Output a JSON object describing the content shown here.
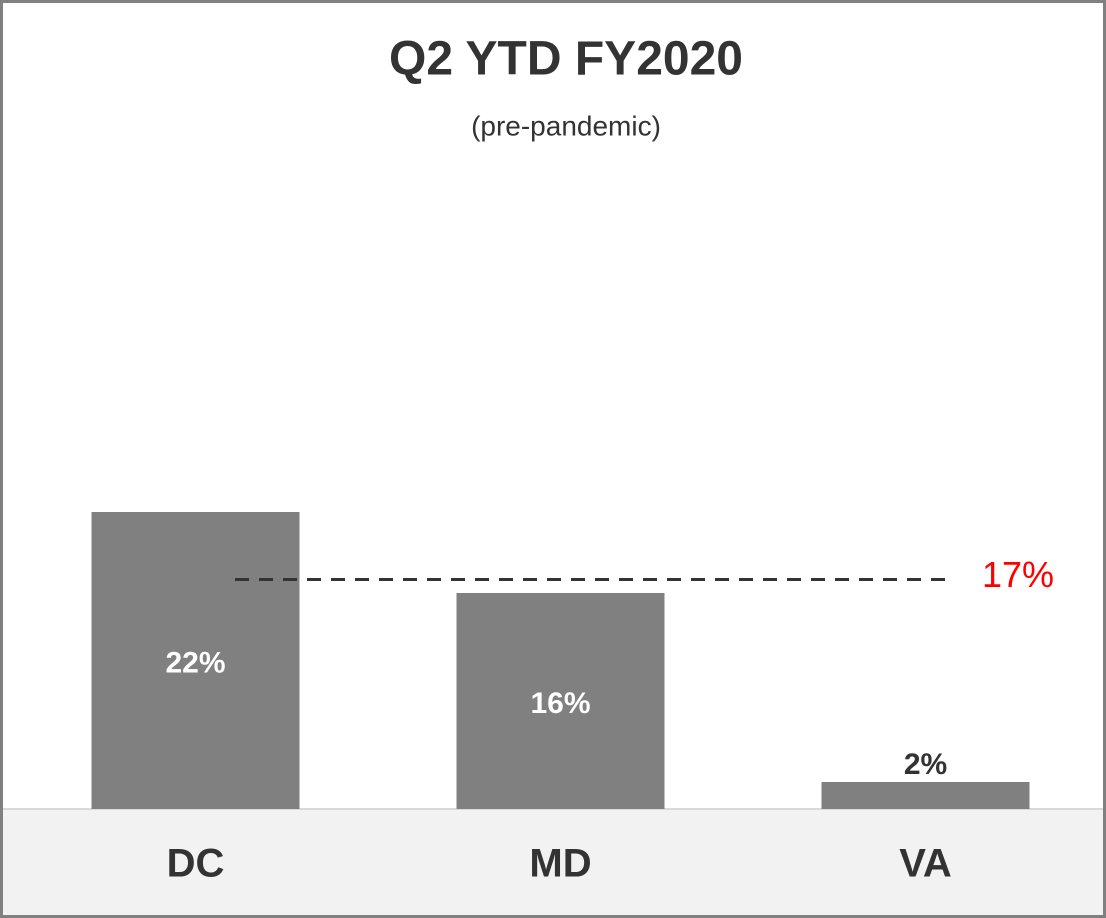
{
  "chart_data": {
    "type": "bar",
    "title": "Q2 YTD FY2020",
    "subtitle": "(pre-pandemic)",
    "categories": [
      "DC",
      "MD",
      "VA"
    ],
    "values": [
      22,
      16,
      2
    ],
    "value_labels": [
      "22%",
      "16%",
      "2%"
    ],
    "color": "#808080",
    "ylim": [
      0,
      40
    ],
    "reference_line": {
      "value": 17,
      "label": "17%",
      "color": "#ff0000"
    }
  }
}
